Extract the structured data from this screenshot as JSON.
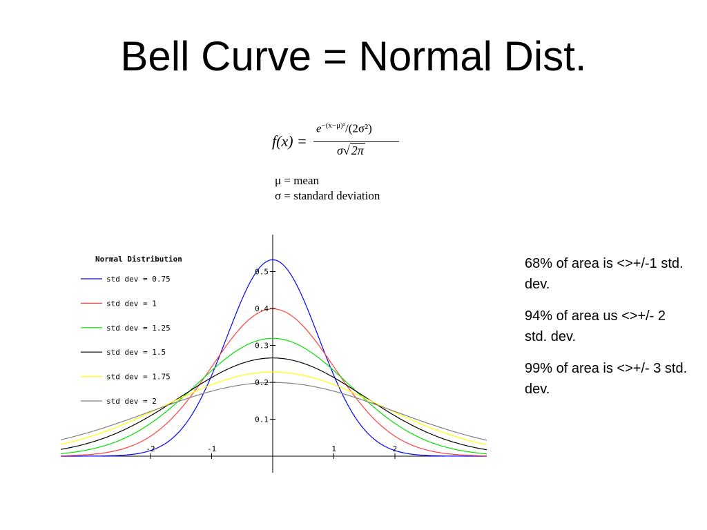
{
  "slide": {
    "title": "Bell Curve = Normal Dist."
  },
  "formula": {
    "lhs": "f(x) =",
    "numerator_base": "e",
    "numerator_exponent": "−(x−μ)²",
    "numerator_divisor": "/(2σ²)",
    "denominator_sigma": "σ√",
    "denominator_radicand": "2π",
    "definitions": [
      "μ = mean",
      "σ = standard deviation"
    ]
  },
  "notes": [
    "68% of area is <>+/-1 std. dev.",
    "94% of area us <>+/- 2 std. dev.",
    "99% of area is <>+/- 3 std. dev."
  ],
  "chart_data": {
    "type": "line",
    "title": "Normal Distribution",
    "xlabel": "",
    "ylabel": "",
    "xlim": [
      -3.4,
      3.4
    ],
    "ylim": [
      -0.1,
      0.6
    ],
    "grid": false,
    "legend_position": "top-left",
    "x_ticks": [
      -2,
      -1,
      1,
      2
    ],
    "x_tick_labels": [
      "-2",
      "-1",
      "1",
      "2"
    ],
    "y_ticks": [
      0.1,
      0.2,
      0.3,
      0.4,
      0.5
    ],
    "y_tick_labels": [
      "0.1",
      "0.2",
      "0.3",
      "0.4",
      "0.5"
    ],
    "mean": 0,
    "series": [
      {
        "name": "std dev = 0.75",
        "std_dev": 0.75,
        "color": "#0000ff"
      },
      {
        "name": "std dev = 1",
        "std_dev": 1,
        "color": "#ff4040"
      },
      {
        "name": "std dev = 1.25",
        "std_dev": 1.25,
        "color": "#00e000"
      },
      {
        "name": "std dev = 1.5",
        "std_dev": 1.5,
        "color": "#000000"
      },
      {
        "name": "std dev = 1.75",
        "std_dev": 1.75,
        "color": "#ffff00"
      },
      {
        "name": "std dev = 2",
        "std_dev": 2,
        "color": "#808080"
      }
    ]
  }
}
